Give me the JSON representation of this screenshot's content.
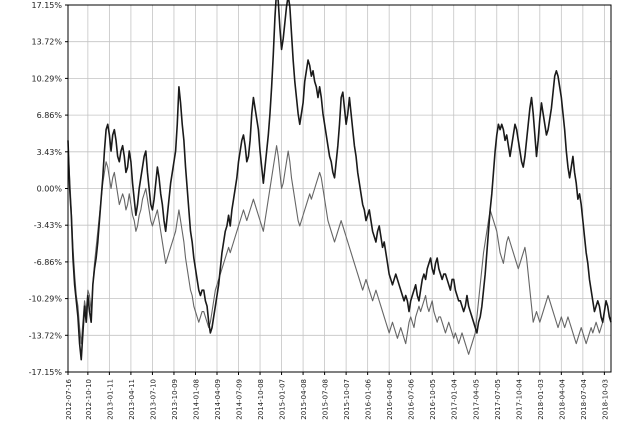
{
  "chart_data": {
    "type": "line",
    "title": "",
    "xlabel": "",
    "ylabel": "",
    "grid": true,
    "legend": "none",
    "ylim": [
      -17.15,
      17.15
    ],
    "y_tick_labels": [
      "17.15%",
      "13.72%",
      "10.29%",
      "6.86%",
      "3.43%",
      "0.00%",
      "-3.43%",
      "-6.86%",
      "-10.29%",
      "-13.72%",
      "-17.15%"
    ],
    "y_tick_values": [
      17.15,
      13.72,
      10.29,
      6.86,
      3.43,
      0.0,
      -3.43,
      -6.86,
      -10.29,
      -13.72,
      -17.15
    ],
    "x_tick_labels": [
      "2012-07-16",
      "2012-10-10",
      "2013-01-11",
      "2013-04-11",
      "2013-07-10",
      "2013-10-09",
      "2014-01-08",
      "2014-04-09",
      "2014-07-09",
      "2014-10-08",
      "2015-01-07",
      "2015-04-08",
      "2015-07-08",
      "2015-10-07",
      "2016-01-06",
      "2016-04-06",
      "2016-07-06",
      "2016-10-05",
      "2017-01-04",
      "2017-04-05",
      "2017-07-05",
      "2017-10-04",
      "2018-01-03",
      "2018-04-04",
      "2018-07-04",
      "2018-10-03"
    ],
    "x_tick_positions": [
      0,
      12,
      25,
      38,
      51,
      64,
      77,
      90,
      103,
      116,
      129,
      142,
      155,
      168,
      181,
      194,
      207,
      220,
      233,
      246,
      259,
      272,
      285,
      298,
      311,
      324
    ],
    "colors": {
      "series1": "#1a1a1a",
      "series2": "#666666",
      "grid": "#c4c4c4",
      "axis": "#000000"
    },
    "series": [
      {
        "values": [
          4.5,
          0.0,
          -2.5,
          -6.5,
          -9.0,
          -10.5,
          -12.0,
          -14.5,
          -16.0,
          -13.5,
          -11.0,
          -12.5,
          -10.0,
          -11.5,
          -12.5,
          -9.0,
          -7.5,
          -6.5,
          -5.0,
          -3.0,
          -1.0,
          1.0,
          3.5,
          5.5,
          6.0,
          5.0,
          3.5,
          5.0,
          5.5,
          4.5,
          3.0,
          2.5,
          3.5,
          4.0,
          3.0,
          1.5,
          2.0,
          3.5,
          2.5,
          0.5,
          -1.0,
          -2.5,
          -1.5,
          0.0,
          1.0,
          2.0,
          3.0,
          3.5,
          1.5,
          0.0,
          -1.5,
          -2.0,
          -1.0,
          0.5,
          2.0,
          1.0,
          -0.5,
          -1.5,
          -3.0,
          -4.0,
          -2.5,
          -1.0,
          0.5,
          1.5,
          2.5,
          3.5,
          6.0,
          9.5,
          8.0,
          6.0,
          4.5,
          2.0,
          0.0,
          -2.0,
          -4.0,
          -5.0,
          -6.5,
          -7.5,
          -8.5,
          -9.5,
          -10.0,
          -9.5,
          -9.5,
          -10.5,
          -11.0,
          -12.5,
          -13.5,
          -13.0,
          -12.0,
          -11.0,
          -10.0,
          -9.0,
          -7.5,
          -6.0,
          -5.0,
          -4.0,
          -3.5,
          -2.5,
          -3.5,
          -2.0,
          -1.0,
          0.0,
          1.0,
          2.5,
          3.5,
          4.5,
          5.0,
          4.0,
          2.5,
          3.0,
          4.5,
          7.0,
          8.5,
          7.5,
          6.5,
          5.5,
          3.5,
          2.0,
          0.5,
          2.0,
          3.5,
          5.0,
          7.0,
          9.5,
          12.5,
          16.0,
          18.5,
          17.5,
          15.0,
          13.0,
          14.0,
          15.5,
          17.0,
          18.0,
          17.0,
          14.5,
          12.0,
          10.0,
          8.5,
          7.0,
          6.0,
          7.0,
          8.0,
          10.0,
          11.0,
          12.0,
          11.5,
          10.5,
          11.0,
          10.0,
          9.5,
          8.5,
          9.5,
          8.5,
          7.0,
          6.0,
          5.0,
          4.0,
          3.0,
          2.5,
          1.5,
          1.0,
          2.5,
          4.0,
          6.0,
          8.5,
          9.0,
          7.5,
          6.0,
          7.0,
          8.5,
          7.0,
          5.5,
          4.0,
          3.0,
          1.5,
          0.5,
          -0.5,
          -1.5,
          -2.0,
          -3.0,
          -2.5,
          -2.0,
          -3.0,
          -4.0,
          -4.5,
          -5.0,
          -4.0,
          -3.5,
          -4.5,
          -5.5,
          -5.0,
          -6.0,
          -7.0,
          -8.0,
          -8.5,
          -9.0,
          -8.5,
          -8.0,
          -8.5,
          -9.0,
          -9.5,
          -10.0,
          -10.5,
          -10.0,
          -10.5,
          -11.5,
          -10.5,
          -10.0,
          -9.5,
          -9.0,
          -10.0,
          -10.5,
          -9.5,
          -8.5,
          -8.0,
          -8.5,
          -7.5,
          -7.0,
          -6.5,
          -7.5,
          -8.0,
          -7.0,
          -6.5,
          -7.5,
          -8.0,
          -8.5,
          -8.0,
          -8.0,
          -8.5,
          -9.0,
          -9.5,
          -8.5,
          -8.5,
          -9.5,
          -10.0,
          -10.5,
          -10.5,
          -11.0,
          -11.5,
          -11.0,
          -10.0,
          -11.0,
          -11.5,
          -12.0,
          -12.5,
          -13.0,
          -13.5,
          -12.5,
          -12.0,
          -11.0,
          -9.5,
          -8.0,
          -6.0,
          -4.0,
          -2.0,
          -0.5,
          1.5,
          3.5,
          5.0,
          6.0,
          5.5,
          6.0,
          5.5,
          4.5,
          5.0,
          4.0,
          3.0,
          4.0,
          5.0,
          6.0,
          5.5,
          4.5,
          3.5,
          2.5,
          2.0,
          3.0,
          4.5,
          6.0,
          7.5,
          8.5,
          7.0,
          5.0,
          3.0,
          4.5,
          6.5,
          8.0,
          7.0,
          6.0,
          5.0,
          5.5,
          6.5,
          7.5,
          9.0,
          10.5,
          11.0,
          10.5,
          9.5,
          8.5,
          7.0,
          5.5,
          3.5,
          2.0,
          1.0,
          2.0,
          3.0,
          1.5,
          0.5,
          -1.0,
          -0.5,
          -1.5,
          -3.0,
          -4.5,
          -6.0,
          -7.0,
          -8.5,
          -9.5,
          -10.5,
          -11.5,
          -11.0,
          -10.5,
          -11.0,
          -12.0,
          -12.5,
          -11.5,
          -10.5,
          -11.0,
          -12.0,
          -12.5
        ]
      },
      {
        "values": [
          4.0,
          1.0,
          -2.0,
          -5.5,
          -8.0,
          -10.0,
          -11.0,
          -13.0,
          -14.5,
          -12.5,
          -10.5,
          -11.5,
          -9.5,
          -10.0,
          -11.5,
          -9.0,
          -7.0,
          -5.5,
          -4.0,
          -2.5,
          -1.0,
          0.5,
          1.5,
          2.5,
          2.0,
          1.0,
          0.0,
          1.0,
          1.5,
          0.5,
          -0.5,
          -1.5,
          -1.0,
          -0.5,
          -1.0,
          -2.0,
          -1.5,
          -0.5,
          -1.5,
          -2.5,
          -3.0,
          -4.0,
          -3.5,
          -2.5,
          -2.0,
          -1.0,
          -0.5,
          0.0,
          -1.0,
          -2.0,
          -3.0,
          -3.5,
          -3.0,
          -2.5,
          -2.0,
          -3.0,
          -4.0,
          -5.0,
          -6.0,
          -7.0,
          -6.5,
          -6.0,
          -5.5,
          -5.0,
          -4.5,
          -4.0,
          -3.0,
          -2.0,
          -3.0,
          -4.0,
          -5.0,
          -6.5,
          -7.5,
          -8.5,
          -9.5,
          -10.0,
          -11.0,
          -11.5,
          -12.0,
          -12.5,
          -12.0,
          -11.5,
          -11.5,
          -12.0,
          -12.5,
          -13.0,
          -12.5,
          -11.5,
          -10.5,
          -9.5,
          -9.0,
          -8.5,
          -8.0,
          -7.5,
          -7.0,
          -6.5,
          -6.0,
          -5.5,
          -6.0,
          -5.5,
          -5.0,
          -4.5,
          -4.0,
          -3.5,
          -3.0,
          -2.5,
          -2.0,
          -2.5,
          -3.0,
          -2.5,
          -2.0,
          -1.5,
          -1.0,
          -1.5,
          -2.0,
          -2.5,
          -3.0,
          -3.5,
          -4.0,
          -3.0,
          -2.0,
          -1.0,
          0.0,
          1.0,
          2.0,
          3.0,
          4.0,
          3.0,
          1.5,
          0.0,
          0.5,
          1.5,
          2.5,
          3.5,
          2.5,
          1.0,
          0.0,
          -1.0,
          -2.0,
          -3.0,
          -3.5,
          -3.0,
          -2.5,
          -2.0,
          -1.5,
          -1.0,
          -0.5,
          -1.0,
          -0.5,
          0.0,
          0.5,
          1.0,
          1.5,
          1.0,
          0.0,
          -1.0,
          -2.0,
          -3.0,
          -3.5,
          -4.0,
          -4.5,
          -5.0,
          -4.5,
          -4.0,
          -3.5,
          -3.0,
          -3.5,
          -4.0,
          -4.5,
          -5.0,
          -5.5,
          -6.0,
          -6.5,
          -7.0,
          -7.5,
          -8.0,
          -8.5,
          -9.0,
          -9.5,
          -9.0,
          -8.5,
          -9.0,
          -9.5,
          -10.0,
          -10.5,
          -10.0,
          -9.5,
          -10.0,
          -10.5,
          -11.0,
          -11.5,
          -12.0,
          -12.5,
          -13.0,
          -13.5,
          -13.0,
          -12.5,
          -13.0,
          -13.5,
          -14.0,
          -13.5,
          -13.0,
          -13.5,
          -14.0,
          -14.5,
          -13.5,
          -12.5,
          -12.0,
          -12.5,
          -13.0,
          -12.0,
          -11.5,
          -11.0,
          -11.5,
          -11.0,
          -10.5,
          -10.0,
          -11.0,
          -11.5,
          -11.0,
          -10.5,
          -11.5,
          -12.0,
          -12.5,
          -12.0,
          -12.0,
          -12.5,
          -13.0,
          -13.5,
          -13.0,
          -12.5,
          -13.0,
          -13.5,
          -14.0,
          -13.5,
          -14.0,
          -14.5,
          -14.0,
          -13.5,
          -14.0,
          -14.5,
          -15.0,
          -15.5,
          -15.0,
          -14.5,
          -14.0,
          -13.5,
          -12.0,
          -10.5,
          -9.0,
          -7.5,
          -6.0,
          -5.0,
          -4.0,
          -3.0,
          -2.0,
          -2.5,
          -3.0,
          -3.5,
          -4.0,
          -5.0,
          -6.0,
          -6.5,
          -7.0,
          -6.0,
          -5.0,
          -4.5,
          -5.0,
          -5.5,
          -6.0,
          -6.5,
          -7.0,
          -7.5,
          -7.0,
          -6.5,
          -6.0,
          -5.5,
          -6.5,
          -8.0,
          -9.5,
          -11.0,
          -12.5,
          -12.0,
          -11.5,
          -12.0,
          -12.5,
          -12.0,
          -11.5,
          -11.0,
          -10.5,
          -10.0,
          -10.5,
          -11.0,
          -11.5,
          -12.0,
          -12.5,
          -13.0,
          -12.5,
          -12.0,
          -12.5,
          -13.0,
          -12.5,
          -12.0,
          -12.5,
          -13.0,
          -13.5,
          -14.0,
          -14.5,
          -14.0,
          -13.5,
          -13.0,
          -13.5,
          -14.0,
          -14.5,
          -14.0,
          -13.5,
          -13.0,
          -13.5,
          -13.0,
          -12.5,
          -13.0,
          -13.5,
          -13.0,
          -12.5
        ]
      }
    ]
  }
}
